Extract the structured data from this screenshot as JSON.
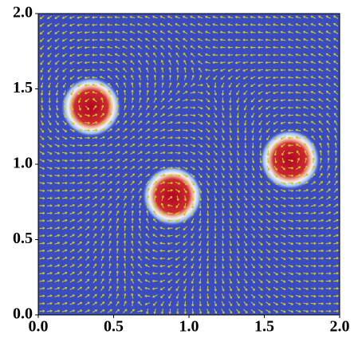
{
  "chart_data": {
    "type": "heatmap",
    "xlim": [
      0,
      2
    ],
    "ylim": [
      0,
      2
    ],
    "xticks": [
      {
        "value": 0,
        "label": "0.0"
      },
      {
        "value": 0.5,
        "label": "0.5"
      },
      {
        "value": 1,
        "label": "1.0"
      },
      {
        "value": 1.5,
        "label": "1.5"
      },
      {
        "value": 2,
        "label": "2.0"
      }
    ],
    "yticks": [
      {
        "value": 0,
        "label": "0.0"
      },
      {
        "value": 0.5,
        "label": "0.5"
      },
      {
        "value": 1,
        "label": "1.0"
      },
      {
        "value": 1.5,
        "label": "1.5"
      },
      {
        "value": 2,
        "label": "2.0"
      }
    ],
    "x": [
      0.35,
      0.89,
      1.67
    ],
    "y": [
      1.38,
      0.79,
      1.03
    ],
    "background_color": "#3b4cc0",
    "arrow_color": "#c8c820"
  }
}
